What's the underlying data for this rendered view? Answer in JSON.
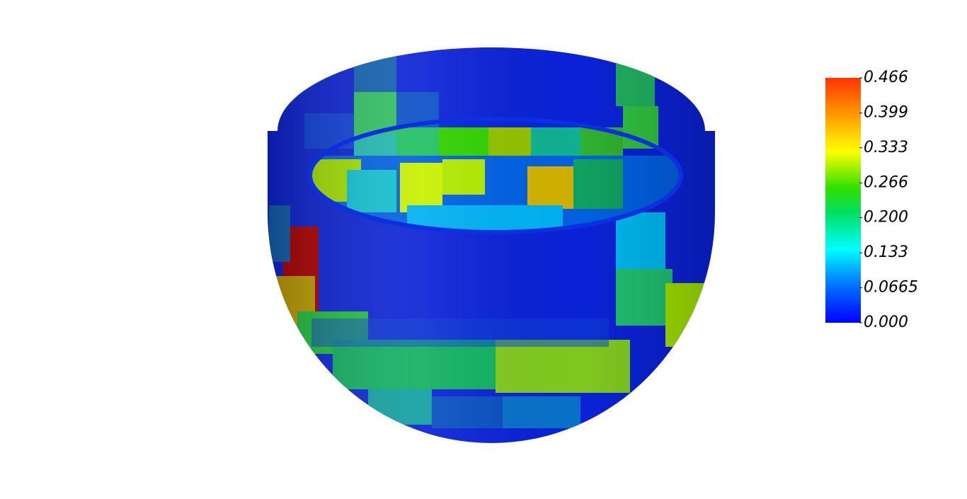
{
  "colorbar": {
    "ticks": [
      {
        "value": 0.466,
        "label": "0.466"
      },
      {
        "value": 0.399,
        "label": "0.399"
      },
      {
        "value": 0.333,
        "label": "0.333"
      },
      {
        "value": 0.266,
        "label": "0.266"
      },
      {
        "value": 0.2,
        "label": "0.200"
      },
      {
        "value": 0.133,
        "label": "0.133"
      },
      {
        "value": 0.0665,
        "label": "0.0665"
      },
      {
        "value": 0,
        "label": "0.000"
      }
    ]
  }
}
